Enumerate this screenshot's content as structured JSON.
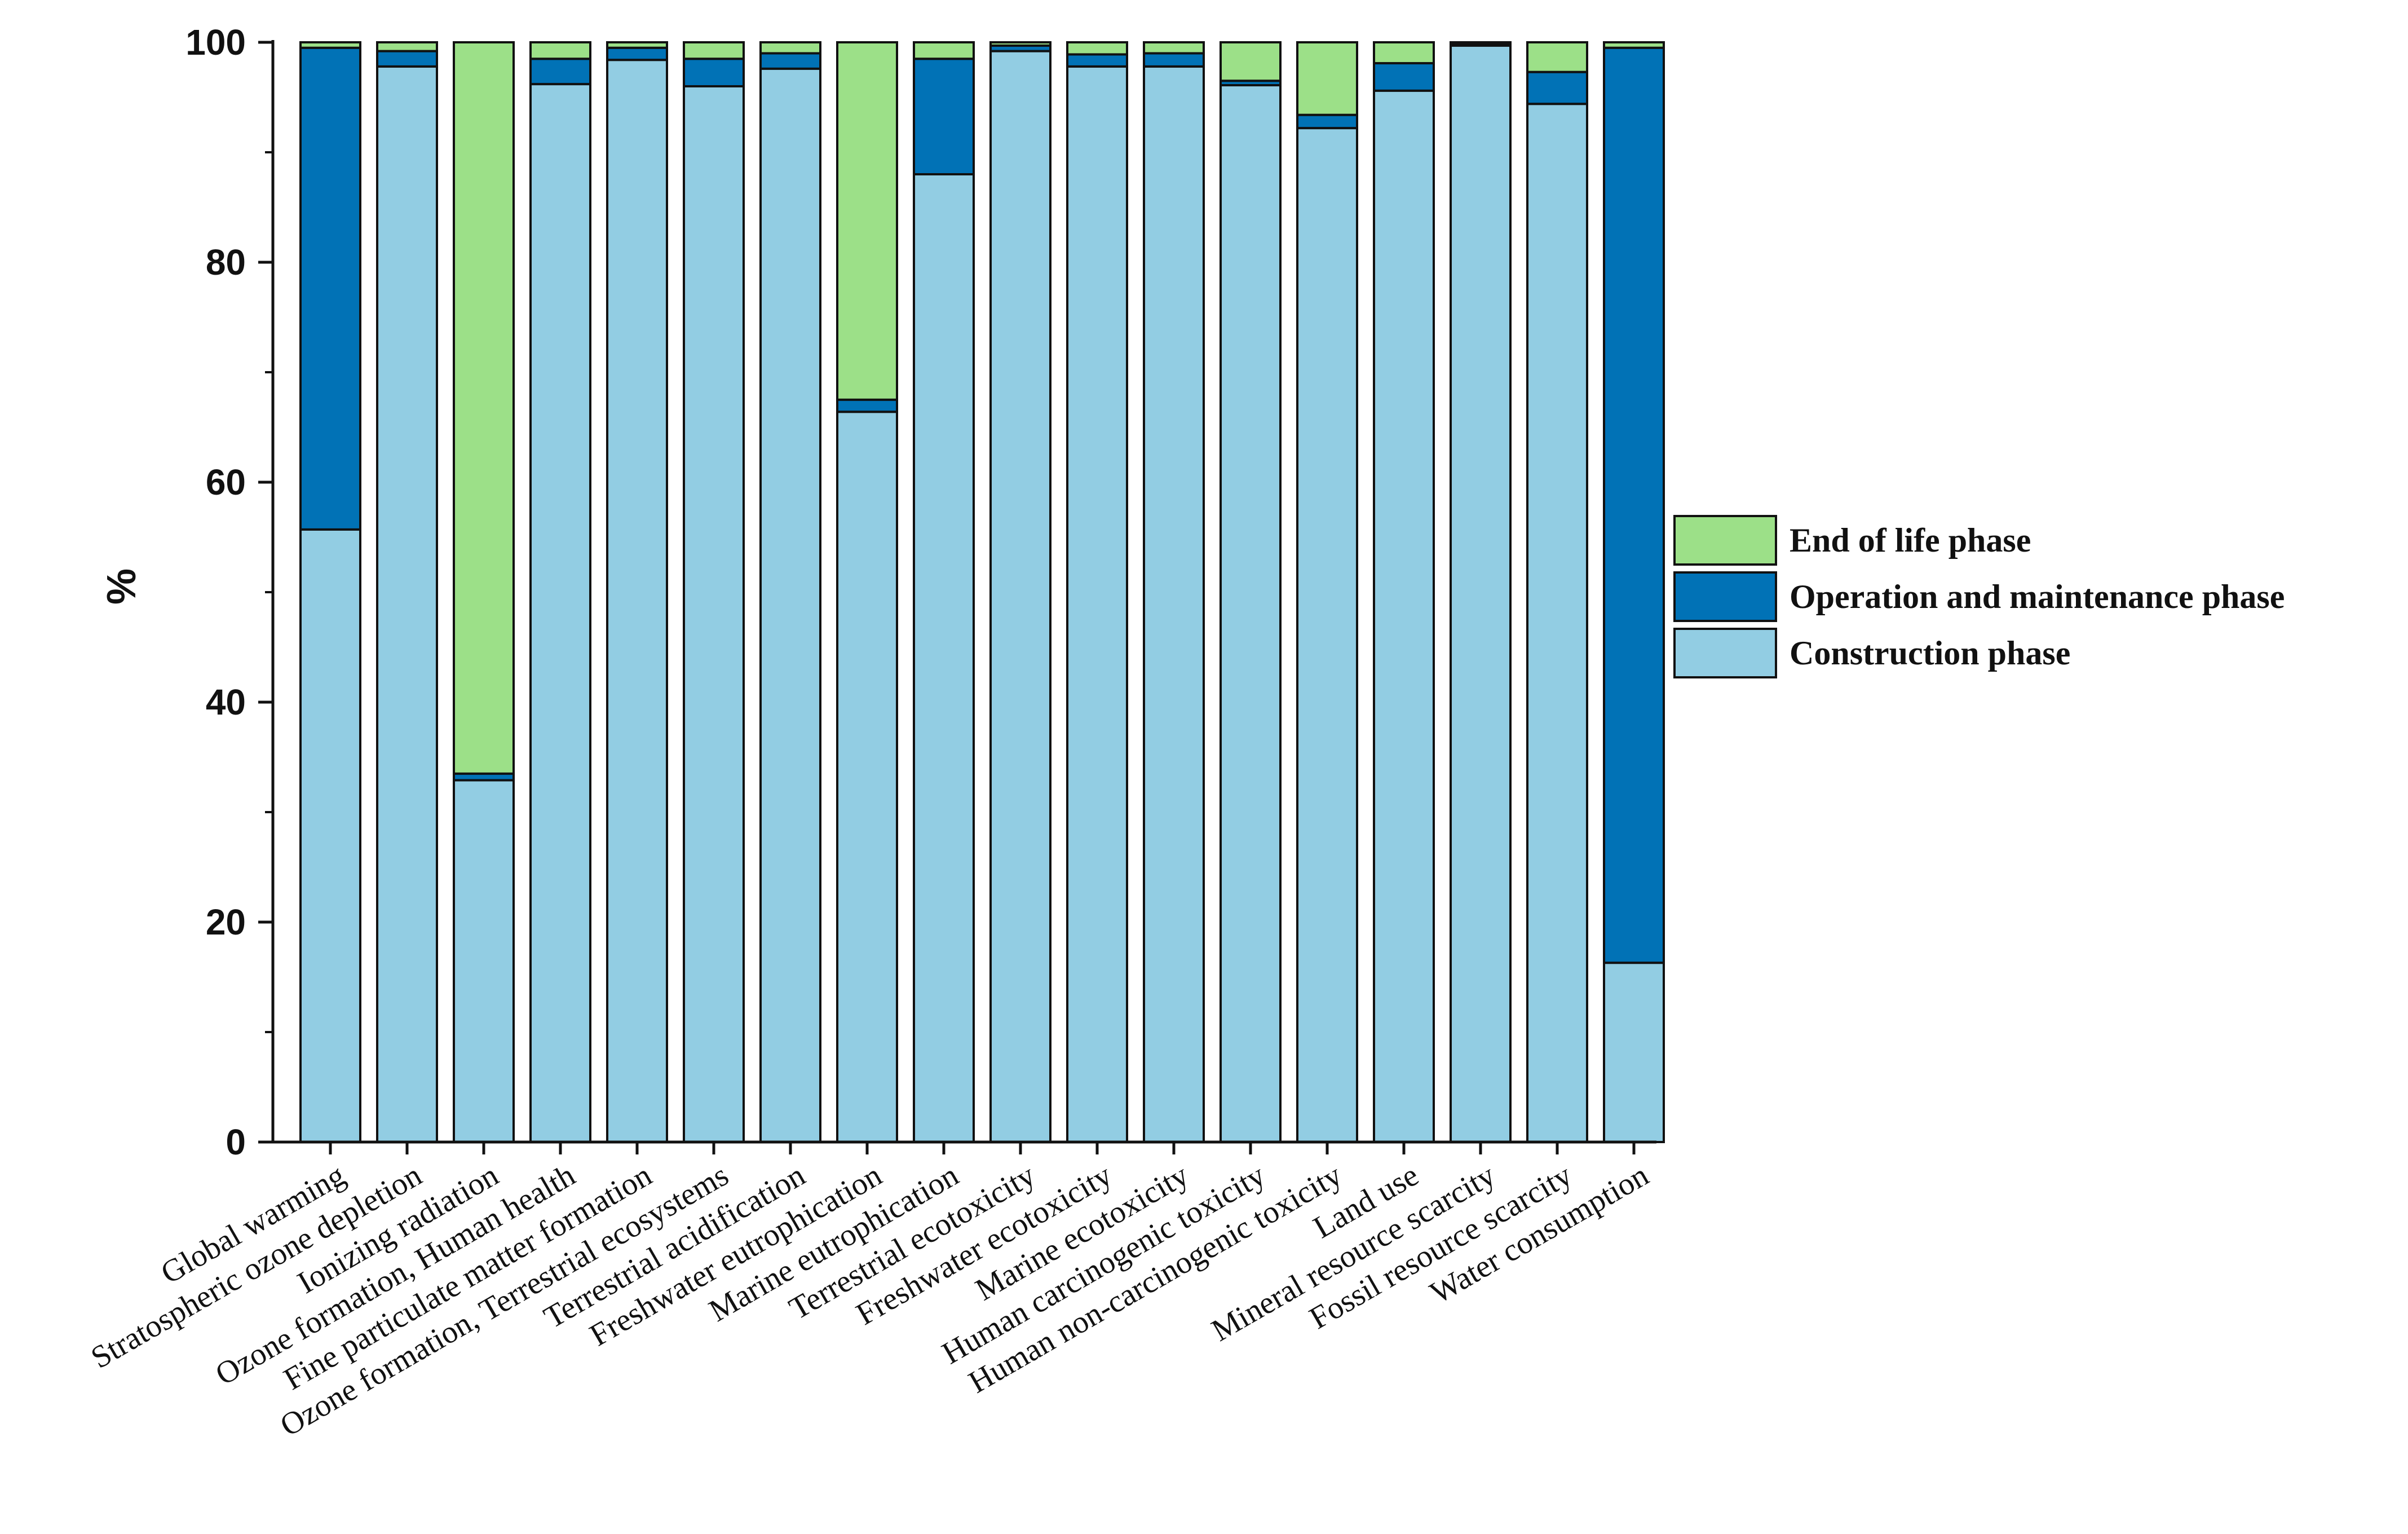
{
  "chart_data": {
    "type": "bar",
    "stacked": true,
    "title": "",
    "xlabel": "",
    "ylabel": "%",
    "ylim": [
      0,
      100
    ],
    "yticks": [
      0,
      20,
      40,
      60,
      80,
      100
    ],
    "grid": false,
    "legend_position": "right",
    "categories": [
      "Global warming",
      "Stratospheric ozone depletion",
      "Ionizing radiation",
      "Ozone formation, Human health",
      "Fine particulate matter formation",
      "Ozone formation, Terrestrial ecosystems",
      "Terrestrial acidification",
      "Freshwater eutrophication",
      "Marine eutrophication",
      "Terrestrial ecotoxicity",
      "Freshwater ecotoxicity",
      "Marine ecotoxicity",
      "Human carcinogenic toxicity",
      "Human non-carcinogenic toxicity",
      "Land use",
      "Mineral resource scarcity",
      "Fossil resource scarcity",
      "Water consumption"
    ],
    "series": [
      {
        "name": "Construction phase",
        "color": "#92CDE3",
        "values": [
          55.7,
          97.8,
          32.9,
          96.2,
          98.4,
          96.0,
          97.6,
          66.4,
          88.0,
          99.2,
          97.8,
          97.8,
          96.1,
          92.2,
          95.6,
          99.7,
          94.4,
          16.3
        ]
      },
      {
        "name": "Operation and maintenance phase",
        "color": "#0172B6",
        "values": [
          43.8,
          1.4,
          0.6,
          2.3,
          1.1,
          2.5,
          1.4,
          1.1,
          10.5,
          0.5,
          1.1,
          1.2,
          0.4,
          1.2,
          2.5,
          0.2,
          2.9,
          83.2
        ]
      },
      {
        "name": "End of life phase",
        "color": "#9CE088",
        "values": [
          0.5,
          0.8,
          66.5,
          1.5,
          0.5,
          1.5,
          1.0,
          32.5,
          1.5,
          0.3,
          1.1,
          1.0,
          3.5,
          6.6,
          1.9,
          0.1,
          2.7,
          0.5
        ]
      }
    ],
    "legend_order": [
      "End of life phase",
      "Operation and maintenance phase",
      "Construction phase"
    ]
  }
}
